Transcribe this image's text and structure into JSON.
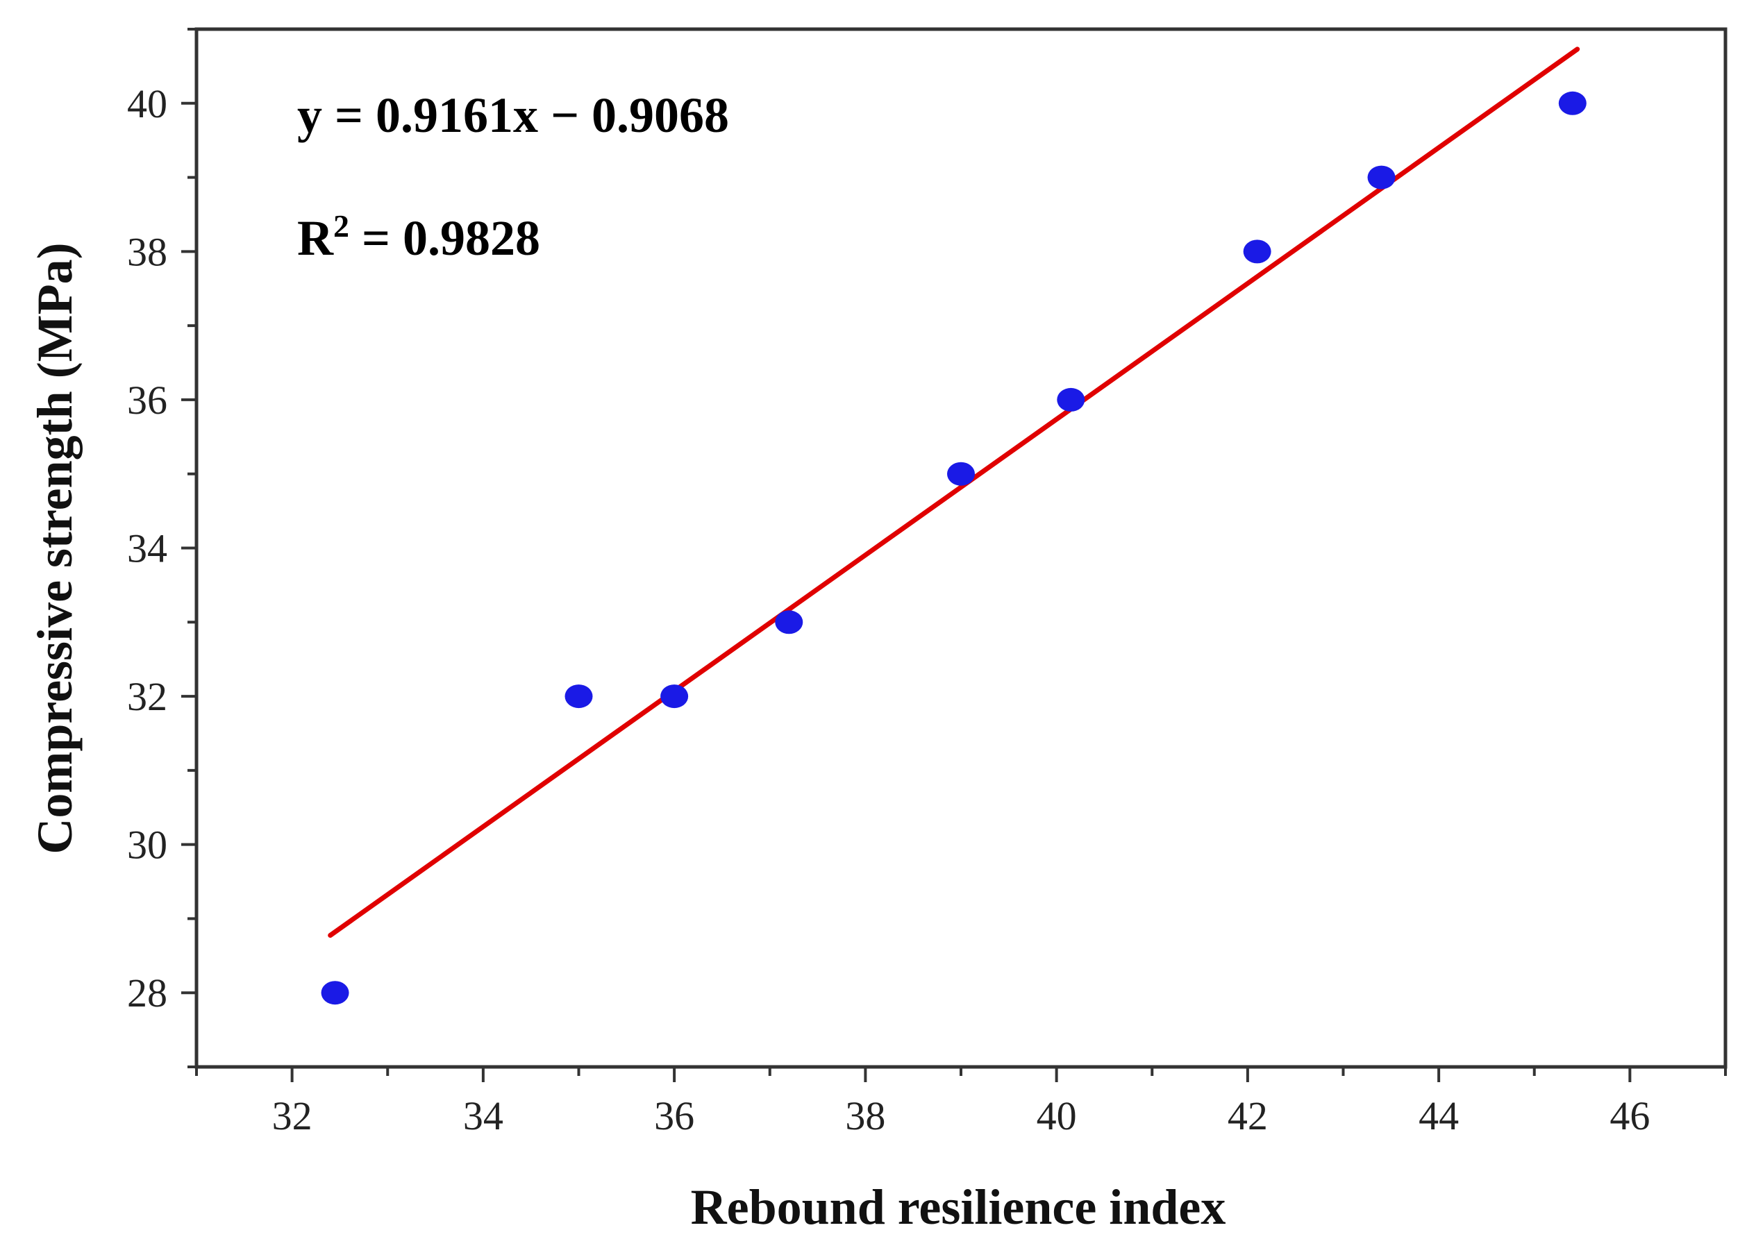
{
  "chart_data": {
    "type": "scatter",
    "title": "",
    "xlabel": "Rebound resilience index",
    "ylabel": "Compressive strength (MPa)",
    "xlim": [
      31,
      47
    ],
    "ylim": [
      27,
      41
    ],
    "xticks": [
      32,
      34,
      36,
      38,
      40,
      42,
      44,
      46
    ],
    "yticks": [
      28,
      30,
      32,
      34,
      36,
      38,
      40
    ],
    "grid": false,
    "series": [
      {
        "type": "scatter",
        "color": "#1a1ae6",
        "points": [
          {
            "x": 32.45,
            "y": 28
          },
          {
            "x": 35.0,
            "y": 32
          },
          {
            "x": 36.0,
            "y": 32
          },
          {
            "x": 37.2,
            "y": 33
          },
          {
            "x": 39.0,
            "y": 35
          },
          {
            "x": 40.15,
            "y": 36
          },
          {
            "x": 42.1,
            "y": 38
          },
          {
            "x": 43.4,
            "y": 39
          },
          {
            "x": 45.4,
            "y": 40
          }
        ]
      },
      {
        "type": "line",
        "color": "#e00000",
        "slope": 0.9161,
        "intercept": -0.9068,
        "x_range": [
          32.4,
          45.45
        ]
      }
    ],
    "annotations": {
      "equation": "y = 0.9161x − 0.9068",
      "r_squared_prefix": "R",
      "r_squared_sup": "2",
      "r_squared_value": " = 0.9828"
    }
  }
}
